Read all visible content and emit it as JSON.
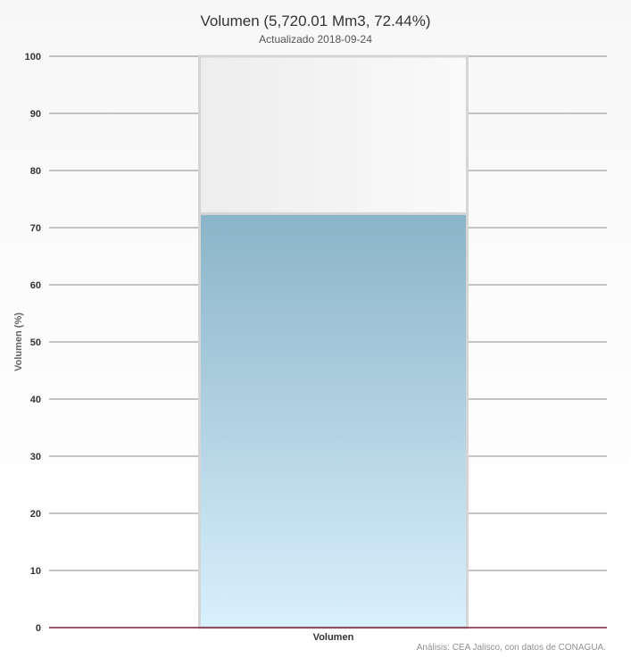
{
  "chart_data": {
    "type": "bar",
    "title": "Volumen (5,720.01 Mm3, 72.44%)",
    "subtitle": "Actualizado 2018-09-24",
    "categories": [
      "Volumen"
    ],
    "values": [
      72.44
    ],
    "capacity": 100,
    "ylabel": "Volumen (%)",
    "xlabel": "",
    "ylim": [
      0,
      100
    ],
    "yticks": [
      0,
      10,
      20,
      30,
      40,
      50,
      60,
      70,
      80,
      90,
      100
    ],
    "grid": true,
    "legend": "none"
  },
  "credits": "Análisis: CEA Jalisco, con datos de CONAGUA.",
  "colors": {
    "fill_top": "#8ab4c8",
    "fill_bottom": "#d9f0fd",
    "empty_fill": "#f3f3f3",
    "baseline": "#7a1f3d",
    "grid": "#666666"
  }
}
